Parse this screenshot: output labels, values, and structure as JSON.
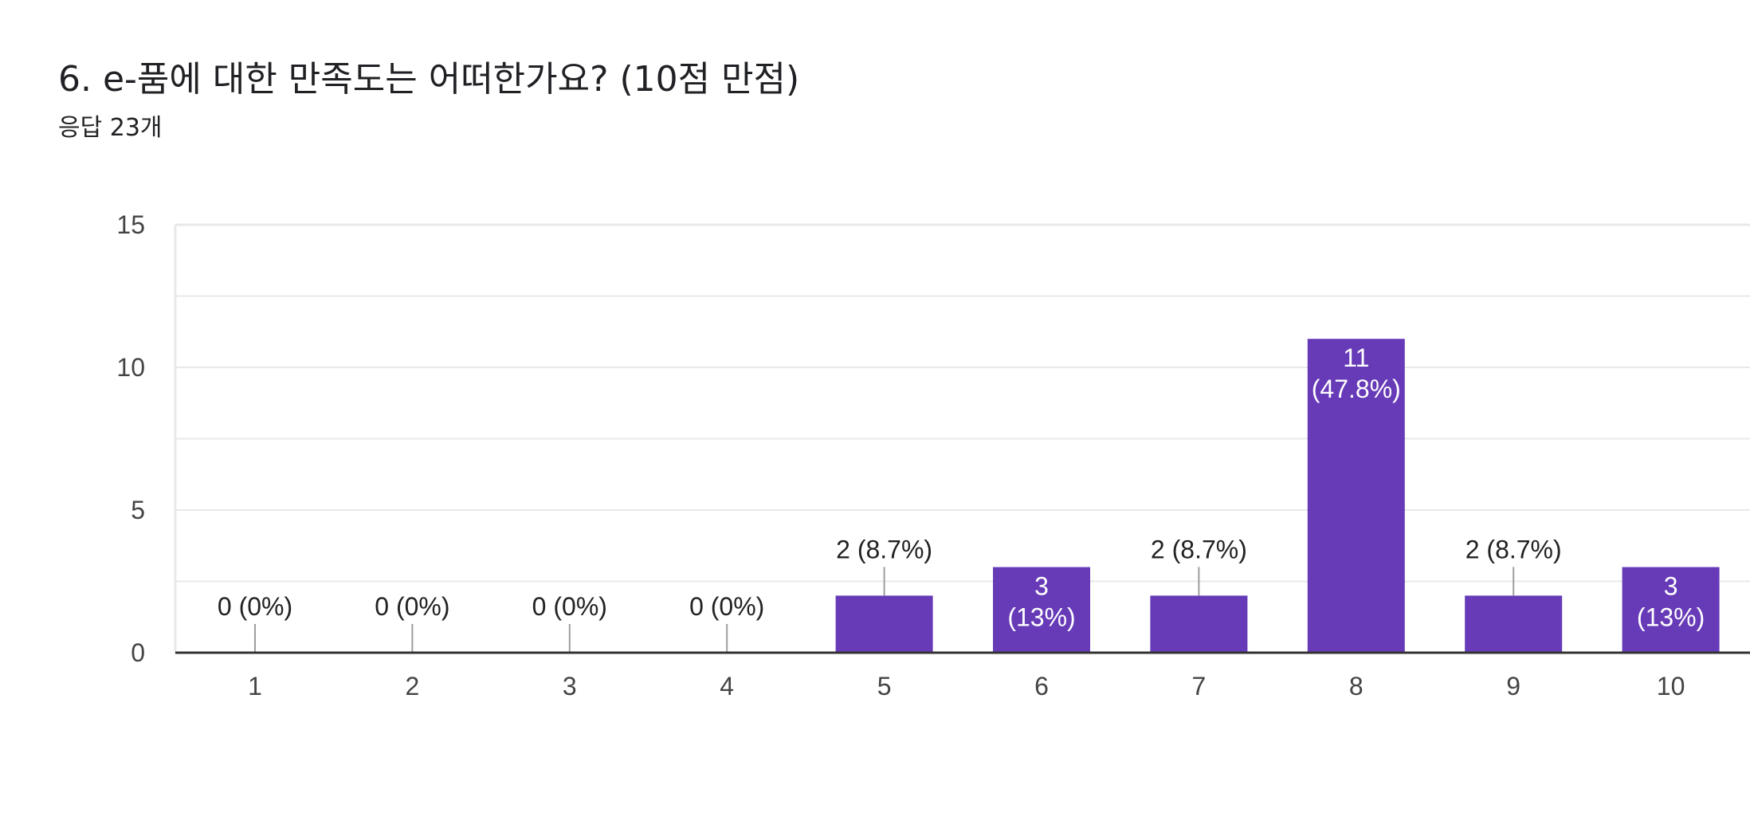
{
  "header": {
    "title": "6. e-품에 대한 만족도는 어떠한가요? (10점 만점)",
    "subtitle": "응답 23개"
  },
  "colors": {
    "bar": "#673ab7",
    "axis": "#333333",
    "grid": "#e8e8e8",
    "leader": "#9e9e9e"
  },
  "chart_data": {
    "type": "bar",
    "title": "6. e-품에 대한 만족도는 어떠한가요? (10점 만점)",
    "subtitle": "응답 23개",
    "categories": [
      "1",
      "2",
      "3",
      "4",
      "5",
      "6",
      "7",
      "8",
      "9",
      "10"
    ],
    "values": [
      0,
      0,
      0,
      0,
      2,
      3,
      2,
      11,
      2,
      3
    ],
    "labels": [
      "0 (0%)",
      "0 (0%)",
      "0 (0%)",
      "0 (0%)",
      "2 (8.7%)",
      "3 (13%)",
      "2 (8.7%)",
      "11 (47.8%)",
      "2 (8.7%)",
      "3 (13%)"
    ],
    "yticks": [
      0,
      5,
      10,
      15
    ],
    "ylim": [
      0,
      15
    ],
    "grid": true,
    "xlabel": "",
    "ylabel": ""
  }
}
